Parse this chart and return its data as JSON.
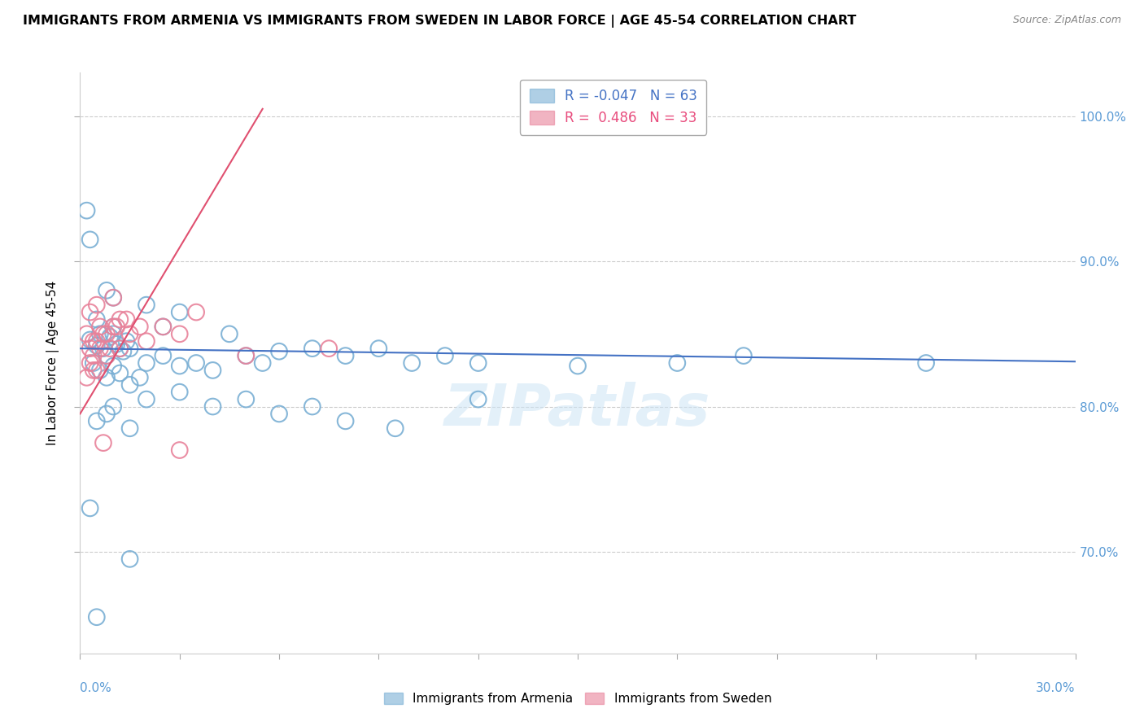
{
  "title": "IMMIGRANTS FROM ARMENIA VS IMMIGRANTS FROM SWEDEN IN LABOR FORCE | AGE 45-54 CORRELATION CHART",
  "source": "Source: ZipAtlas.com",
  "ylabel": "In Labor Force | Age 45-54",
  "xlim": [
    0.0,
    30.0
  ],
  "ylim": [
    63.0,
    103.0
  ],
  "armenia_color": "#7aafd4",
  "sweden_color": "#e8829a",
  "armenia_line_color": "#4472c4",
  "sweden_line_color": "#e05070",
  "armenia_R": -0.047,
  "armenia_N": 63,
  "sweden_R": 0.486,
  "sweden_N": 33,
  "watermark": "ZIPatlas",
  "armenia_scatter": [
    [
      0.3,
      84.6
    ],
    [
      0.5,
      84.2
    ],
    [
      0.6,
      85.0
    ],
    [
      0.7,
      84.0
    ],
    [
      0.8,
      83.5
    ],
    [
      0.9,
      84.8
    ],
    [
      1.0,
      85.5
    ],
    [
      1.1,
      84.3
    ],
    [
      1.2,
      84.0
    ],
    [
      1.3,
      83.8
    ],
    [
      1.4,
      84.5
    ],
    [
      1.5,
      84.0
    ],
    [
      0.4,
      83.0
    ],
    [
      0.6,
      82.5
    ],
    [
      0.8,
      82.0
    ],
    [
      1.0,
      82.8
    ],
    [
      1.2,
      82.3
    ],
    [
      1.5,
      81.5
    ],
    [
      1.8,
      82.0
    ],
    [
      2.0,
      83.0
    ],
    [
      2.5,
      83.5
    ],
    [
      3.0,
      82.8
    ],
    [
      3.5,
      83.0
    ],
    [
      4.0,
      82.5
    ],
    [
      5.0,
      83.5
    ],
    [
      5.5,
      83.0
    ],
    [
      0.2,
      93.5
    ],
    [
      0.3,
      91.5
    ],
    [
      6.0,
      83.8
    ],
    [
      7.0,
      84.0
    ],
    [
      8.0,
      83.5
    ],
    [
      9.0,
      84.0
    ],
    [
      10.0,
      83.0
    ],
    [
      11.0,
      83.5
    ],
    [
      12.0,
      83.0
    ],
    [
      15.0,
      82.8
    ],
    [
      18.0,
      83.0
    ],
    [
      0.5,
      79.0
    ],
    [
      0.8,
      79.5
    ],
    [
      1.0,
      80.0
    ],
    [
      1.5,
      78.5
    ],
    [
      2.0,
      80.5
    ],
    [
      3.0,
      81.0
    ],
    [
      4.0,
      80.0
    ],
    [
      5.0,
      80.5
    ],
    [
      6.0,
      79.5
    ],
    [
      7.0,
      80.0
    ],
    [
      8.0,
      79.0
    ],
    [
      9.5,
      78.5
    ],
    [
      12.0,
      80.5
    ],
    [
      0.5,
      86.0
    ],
    [
      0.8,
      88.0
    ],
    [
      1.0,
      87.5
    ],
    [
      2.0,
      87.0
    ],
    [
      3.0,
      86.5
    ],
    [
      0.3,
      73.0
    ],
    [
      1.5,
      69.5
    ],
    [
      0.5,
      65.5
    ],
    [
      20.0,
      83.5
    ],
    [
      25.5,
      83.0
    ],
    [
      1.0,
      85.0
    ],
    [
      2.5,
      85.5
    ],
    [
      4.5,
      85.0
    ]
  ],
  "sweden_scatter": [
    [
      0.2,
      85.0
    ],
    [
      0.4,
      84.5
    ],
    [
      0.6,
      85.5
    ],
    [
      0.8,
      85.0
    ],
    [
      1.0,
      85.5
    ],
    [
      1.2,
      86.0
    ],
    [
      1.5,
      85.0
    ],
    [
      0.3,
      84.0
    ],
    [
      0.5,
      84.5
    ],
    [
      0.7,
      85.0
    ],
    [
      0.9,
      84.0
    ],
    [
      1.1,
      85.5
    ],
    [
      1.4,
      86.0
    ],
    [
      0.4,
      83.5
    ],
    [
      0.6,
      84.0
    ],
    [
      1.8,
      85.5
    ],
    [
      2.5,
      85.5
    ],
    [
      3.5,
      86.5
    ],
    [
      0.3,
      83.0
    ],
    [
      0.5,
      82.5
    ],
    [
      0.8,
      83.5
    ],
    [
      1.2,
      84.0
    ],
    [
      2.0,
      84.5
    ],
    [
      3.0,
      85.0
    ],
    [
      0.2,
      82.0
    ],
    [
      0.4,
      82.5
    ],
    [
      5.0,
      83.5
    ],
    [
      7.5,
      84.0
    ],
    [
      0.3,
      86.5
    ],
    [
      0.5,
      87.0
    ],
    [
      1.0,
      87.5
    ],
    [
      0.7,
      77.5
    ],
    [
      3.0,
      77.0
    ]
  ],
  "armenia_trendline": [
    [
      0.0,
      84.0
    ],
    [
      30.0,
      83.1
    ]
  ],
  "sweden_trendline": [
    [
      0.0,
      79.5
    ],
    [
      5.5,
      100.5
    ]
  ]
}
